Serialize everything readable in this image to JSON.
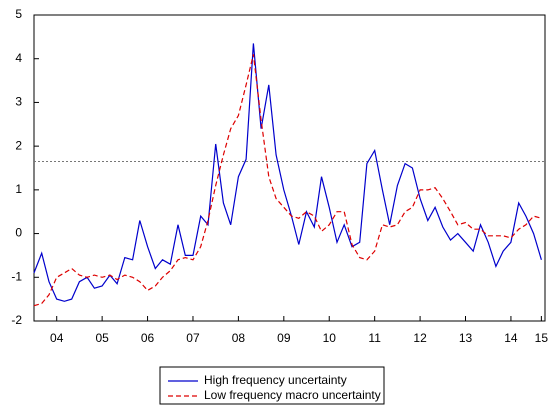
{
  "chart_data": {
    "type": "line",
    "x": [
      2004.0,
      2004.17,
      2004.33,
      2004.5,
      2004.67,
      2004.83,
      2005.0,
      2005.17,
      2005.33,
      2005.5,
      2005.67,
      2005.83,
      2006.0,
      2006.17,
      2006.33,
      2006.5,
      2006.67,
      2006.83,
      2007.0,
      2007.17,
      2007.33,
      2007.5,
      2007.67,
      2007.83,
      2008.0,
      2008.17,
      2008.33,
      2008.5,
      2008.67,
      2008.83,
      2009.0,
      2009.17,
      2009.33,
      2009.5,
      2009.67,
      2009.83,
      2010.0,
      2010.17,
      2010.33,
      2010.5,
      2010.67,
      2010.83,
      2011.0,
      2011.17,
      2011.33,
      2011.5,
      2011.67,
      2011.83,
      2012.0,
      2012.17,
      2012.33,
      2012.5,
      2012.67,
      2012.83,
      2013.0,
      2013.17,
      2013.33,
      2013.5,
      2013.67,
      2013.83,
      2014.0,
      2014.17,
      2014.33,
      2014.5,
      2014.67,
      2014.83,
      2015.0,
      2015.17
    ],
    "series": [
      {
        "name": "High frequency uncertainty",
        "color": "#0000cc",
        "dash": false,
        "values": [
          -0.9,
          -0.45,
          -1.1,
          -1.5,
          -1.55,
          -1.5,
          -1.1,
          -1.0,
          -1.25,
          -1.2,
          -0.95,
          -1.15,
          -0.55,
          -0.6,
          0.3,
          -0.3,
          -0.8,
          -0.6,
          -0.7,
          0.2,
          -0.5,
          -0.5,
          0.4,
          0.2,
          2.05,
          0.7,
          0.2,
          1.3,
          1.7,
          4.35,
          2.4,
          3.4,
          1.8,
          1.0,
          0.4,
          -0.25,
          0.5,
          0.15,
          1.3,
          0.6,
          -0.2,
          0.2,
          -0.3,
          -0.2,
          1.6,
          1.9,
          1.0,
          0.2,
          1.1,
          1.6,
          1.5,
          0.8,
          0.3,
          0.6,
          0.15,
          -0.15,
          0.0,
          -0.2,
          -0.4,
          0.2,
          -0.2,
          -0.75,
          -0.4,
          -0.2,
          0.7,
          0.4,
          0.0,
          -0.6
        ]
      },
      {
        "name": "Low frequency macro uncertainty",
        "color": "#dd0000",
        "dash": true,
        "values": [
          -1.65,
          -1.6,
          -1.4,
          -1.0,
          -0.9,
          -0.8,
          -0.95,
          -1.0,
          -0.95,
          -1.0,
          -0.95,
          -1.05,
          -0.95,
          -1.0,
          -1.1,
          -1.3,
          -1.2,
          -1.0,
          -0.85,
          -0.6,
          -0.55,
          -0.6,
          -0.3,
          0.3,
          1.1,
          1.8,
          2.4,
          2.7,
          3.4,
          4.1,
          2.6,
          1.3,
          0.8,
          0.6,
          0.4,
          0.35,
          0.5,
          0.4,
          0.05,
          0.2,
          0.5,
          0.5,
          -0.25,
          -0.55,
          -0.6,
          -0.4,
          0.2,
          0.15,
          0.2,
          0.5,
          0.6,
          1.0,
          1.0,
          1.05,
          0.8,
          0.5,
          0.2,
          0.25,
          0.1,
          0.1,
          -0.05,
          -0.05,
          -0.05,
          -0.1,
          0.1,
          0.2,
          0.4,
          0.35
        ]
      }
    ],
    "reference_line": 1.65,
    "xlim": [
      2004,
      2015.25
    ],
    "xticks": [
      {
        "value": 2004.5,
        "label": "04"
      },
      {
        "value": 2005.5,
        "label": "05"
      },
      {
        "value": 2006.5,
        "label": "06"
      },
      {
        "value": 2007.5,
        "label": "07"
      },
      {
        "value": 2008.5,
        "label": "08"
      },
      {
        "value": 2009.5,
        "label": "09"
      },
      {
        "value": 2010.5,
        "label": "10"
      },
      {
        "value": 2011.5,
        "label": "11"
      },
      {
        "value": 2012.5,
        "label": "12"
      },
      {
        "value": 2013.5,
        "label": "13"
      },
      {
        "value": 2014.5,
        "label": "14"
      },
      {
        "value": 2015.17,
        "label": "15"
      }
    ],
    "ylim": [
      -2,
      5
    ],
    "yticks": [
      -2,
      -1,
      0,
      1,
      2,
      3,
      4,
      5
    ]
  }
}
